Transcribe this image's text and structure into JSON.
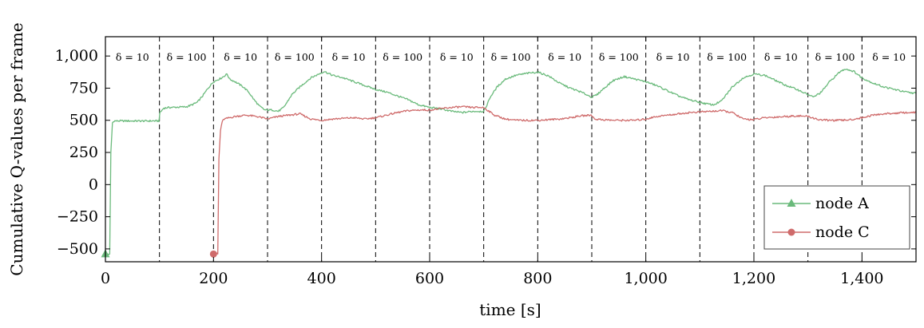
{
  "chart_data": {
    "type": "line",
    "title": "",
    "xlabel": "time [s]",
    "ylabel": "Cumulative Q-values per frame",
    "xlim": [
      0,
      1500
    ],
    "ylim": [
      -600,
      1150
    ],
    "xticks": [
      0,
      200,
      400,
      600,
      800,
      1000,
      1200,
      1400
    ],
    "xtick_labels": [
      "0",
      "200",
      "400",
      "600",
      "800",
      "1,000",
      "1,200",
      "1,400"
    ],
    "yticks": [
      1000,
      750,
      500,
      250,
      0,
      -250,
      -500
    ],
    "ytick_labels": [
      "1,000",
      "750",
      "500",
      "250",
      "0",
      "−250",
      "−500"
    ],
    "grid": false,
    "legend_position": "bottom-right",
    "phase_boundaries": [
      100,
      200,
      300,
      400,
      500,
      600,
      700,
      800,
      900,
      1000,
      1100,
      1200,
      1300,
      1400
    ],
    "phase_labels": [
      {
        "x": 50,
        "text": "δ = 10"
      },
      {
        "x": 150,
        "text": "δ = 100"
      },
      {
        "x": 250,
        "text": "δ = 10"
      },
      {
        "x": 350,
        "text": "δ = 100"
      },
      {
        "x": 450,
        "text": "δ = 10"
      },
      {
        "x": 550,
        "text": "δ = 100"
      },
      {
        "x": 650,
        "text": "δ = 10"
      },
      {
        "x": 750,
        "text": "δ = 100"
      },
      {
        "x": 850,
        "text": "δ = 10"
      },
      {
        "x": 950,
        "text": "δ = 100"
      },
      {
        "x": 1050,
        "text": "δ = 10"
      },
      {
        "x": 1150,
        "text": "δ = 100"
      },
      {
        "x": 1250,
        "text": "δ = 10"
      },
      {
        "x": 1350,
        "text": "δ = 100"
      },
      {
        "x": 1450,
        "text": "δ = 10"
      }
    ],
    "series": [
      {
        "name": "node A",
        "color": "#6aba7b",
        "marker": "triangle",
        "points": [
          [
            0,
            -540
          ],
          [
            8,
            -540
          ],
          [
            10,
            250
          ],
          [
            13,
            480
          ],
          [
            16,
            495
          ],
          [
            20,
            495
          ],
          [
            50,
            495
          ],
          [
            99,
            495
          ],
          [
            101,
            560
          ],
          [
            108,
            595
          ],
          [
            120,
            600
          ],
          [
            150,
            605
          ],
          [
            160,
            620
          ],
          [
            170,
            640
          ],
          [
            180,
            690
          ],
          [
            190,
            750
          ],
          [
            200,
            800
          ],
          [
            215,
            830
          ],
          [
            225,
            860
          ],
          [
            230,
            820
          ],
          [
            240,
            800
          ],
          [
            255,
            760
          ],
          [
            265,
            720
          ],
          [
            275,
            660
          ],
          [
            285,
            610
          ],
          [
            295,
            580
          ],
          [
            310,
            580
          ],
          [
            320,
            570
          ],
          [
            330,
            600
          ],
          [
            345,
            700
          ],
          [
            360,
            760
          ],
          [
            380,
            830
          ],
          [
            395,
            860
          ],
          [
            405,
            880
          ],
          [
            420,
            850
          ],
          [
            440,
            830
          ],
          [
            460,
            800
          ],
          [
            480,
            770
          ],
          [
            500,
            740
          ],
          [
            520,
            720
          ],
          [
            540,
            690
          ],
          [
            560,
            660
          ],
          [
            580,
            620
          ],
          [
            600,
            600
          ],
          [
            620,
            590
          ],
          [
            640,
            570
          ],
          [
            660,
            560
          ],
          [
            680,
            570
          ],
          [
            700,
            570
          ],
          [
            703,
            590
          ],
          [
            712,
            680
          ],
          [
            725,
            760
          ],
          [
            740,
            820
          ],
          [
            760,
            850
          ],
          [
            780,
            865
          ],
          [
            800,
            875
          ],
          [
            820,
            845
          ],
          [
            840,
            790
          ],
          [
            860,
            750
          ],
          [
            880,
            720
          ],
          [
            900,
            680
          ],
          [
            910,
            700
          ],
          [
            920,
            740
          ],
          [
            940,
            810
          ],
          [
            960,
            840
          ],
          [
            980,
            820
          ],
          [
            1000,
            800
          ],
          [
            1020,
            770
          ],
          [
            1040,
            730
          ],
          [
            1060,
            690
          ],
          [
            1080,
            660
          ],
          [
            1100,
            640
          ],
          [
            1110,
            630
          ],
          [
            1125,
            620
          ],
          [
            1140,
            650
          ],
          [
            1160,
            760
          ],
          [
            1180,
            830
          ],
          [
            1200,
            860
          ],
          [
            1220,
            850
          ],
          [
            1240,
            810
          ],
          [
            1260,
            770
          ],
          [
            1280,
            740
          ],
          [
            1300,
            700
          ],
          [
            1310,
            680
          ],
          [
            1325,
            720
          ],
          [
            1340,
            800
          ],
          [
            1360,
            880
          ],
          [
            1370,
            900
          ],
          [
            1385,
            880
          ],
          [
            1400,
            830
          ],
          [
            1420,
            790
          ],
          [
            1440,
            760
          ],
          [
            1460,
            740
          ],
          [
            1480,
            720
          ],
          [
            1500,
            710
          ]
        ]
      },
      {
        "name": "node C",
        "color": "#cf6b6b",
        "marker": "circle",
        "points": [
          [
            200,
            -540
          ],
          [
            208,
            -540
          ],
          [
            210,
            200
          ],
          [
            213,
            420
          ],
          [
            216,
            490
          ],
          [
            220,
            510
          ],
          [
            240,
            530
          ],
          [
            260,
            540
          ],
          [
            280,
            530
          ],
          [
            300,
            510
          ],
          [
            320,
            530
          ],
          [
            340,
            540
          ],
          [
            360,
            550
          ],
          [
            380,
            510
          ],
          [
            400,
            500
          ],
          [
            420,
            510
          ],
          [
            440,
            515
          ],
          [
            460,
            520
          ],
          [
            480,
            510
          ],
          [
            500,
            520
          ],
          [
            520,
            540
          ],
          [
            540,
            560
          ],
          [
            560,
            575
          ],
          [
            580,
            580
          ],
          [
            600,
            580
          ],
          [
            620,
            590
          ],
          [
            640,
            600
          ],
          [
            660,
            605
          ],
          [
            680,
            600
          ],
          [
            700,
            600
          ],
          [
            720,
            540
          ],
          [
            740,
            510
          ],
          [
            760,
            500
          ],
          [
            780,
            500
          ],
          [
            800,
            500
          ],
          [
            820,
            505
          ],
          [
            840,
            510
          ],
          [
            860,
            520
          ],
          [
            880,
            535
          ],
          [
            900,
            540
          ],
          [
            905,
            510
          ],
          [
            920,
            505
          ],
          [
            940,
            500
          ],
          [
            960,
            500
          ],
          [
            980,
            500
          ],
          [
            1000,
            510
          ],
          [
            1020,
            530
          ],
          [
            1040,
            540
          ],
          [
            1060,
            550
          ],
          [
            1080,
            560
          ],
          [
            1100,
            565
          ],
          [
            1120,
            570
          ],
          [
            1140,
            575
          ],
          [
            1160,
            560
          ],
          [
            1180,
            510
          ],
          [
            1200,
            505
          ],
          [
            1220,
            520
          ],
          [
            1240,
            525
          ],
          [
            1260,
            530
          ],
          [
            1280,
            535
          ],
          [
            1300,
            530
          ],
          [
            1320,
            505
          ],
          [
            1340,
            500
          ],
          [
            1360,
            500
          ],
          [
            1380,
            505
          ],
          [
            1400,
            520
          ],
          [
            1420,
            540
          ],
          [
            1440,
            550
          ],
          [
            1460,
            555
          ],
          [
            1480,
            560
          ],
          [
            1500,
            560
          ]
        ]
      }
    ]
  }
}
